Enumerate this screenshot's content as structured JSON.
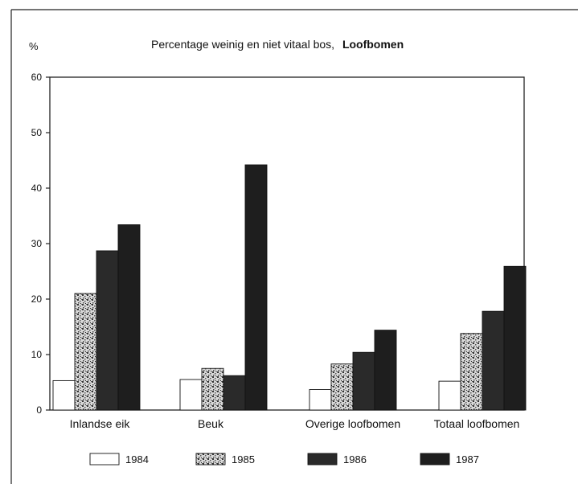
{
  "chart_data": {
    "type": "bar",
    "title": "Percentage weinig en niet vitaal bos,",
    "title_bold": "Loofbomen",
    "ylabel": "%",
    "xlabel": "",
    "ylim": [
      0,
      60
    ],
    "yticks": [
      0,
      10,
      20,
      30,
      40,
      50,
      60
    ],
    "grid": false,
    "legend_position": "bottom",
    "categories": [
      "Inlandse eik",
      "Beuk",
      "Overige loofbomen",
      "Totaal loofbomen"
    ],
    "series": [
      {
        "name": "1984",
        "values": [
          5.3,
          5.5,
          3.7,
          5.2
        ],
        "fill": "#ffffff"
      },
      {
        "name": "1985",
        "values": [
          21,
          7.5,
          8.3,
          13.8
        ],
        "fill": "stipple"
      },
      {
        "name": "1986",
        "values": [
          28.7,
          6.2,
          10.4,
          17.8
        ],
        "fill": "#2a2a2a"
      },
      {
        "name": "1987",
        "values": [
          33.4,
          44.2,
          14.4,
          25.9
        ],
        "fill": "#1e1e1e"
      }
    ]
  }
}
